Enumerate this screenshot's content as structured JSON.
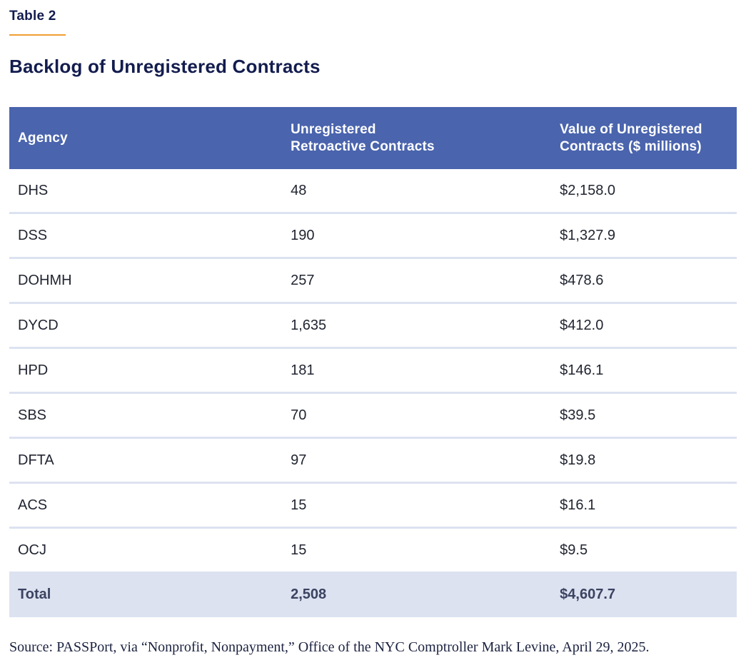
{
  "page": {
    "table_label": "Table 2",
    "title": "Backlog of Unregistered Contracts",
    "source": "Source: PASSPort, via “Nonprofit, Nonpayment,” Office of the NYC Comptroller Mark Levine, April 29, 2025."
  },
  "table": {
    "columns": [
      "Agency",
      "Unregistered\nRetroactive Contracts",
      "Value of Unregistered\nContracts ($ millions)"
    ],
    "rows": [
      [
        "DHS",
        "48",
        "$2,158.0"
      ],
      [
        "DSS",
        "190",
        "$1,327.9"
      ],
      [
        "DOHMH",
        "257",
        "$478.6"
      ],
      [
        "DYCD",
        "1,635",
        "$412.0"
      ],
      [
        "HPD",
        "181",
        "$146.1"
      ],
      [
        "SBS",
        "70",
        "$39.5"
      ],
      [
        "DFTA",
        "97",
        "$19.8"
      ],
      [
        "ACS",
        "15",
        "$16.1"
      ],
      [
        "OCJ",
        "15",
        "$9.5"
      ]
    ],
    "total": {
      "label": "Total",
      "contracts": "2,508",
      "value": "$4,607.7"
    }
  },
  "colors": {
    "header_bg": "#4a64ad",
    "header_text": "#ffffff",
    "title_navy": "#131c4e",
    "accent_orange": "#f09d2f",
    "row_divider": "#dde2f1",
    "total_row_bg": "#dde2f1",
    "body_text": "#212531",
    "total_text": "#3a4360"
  }
}
